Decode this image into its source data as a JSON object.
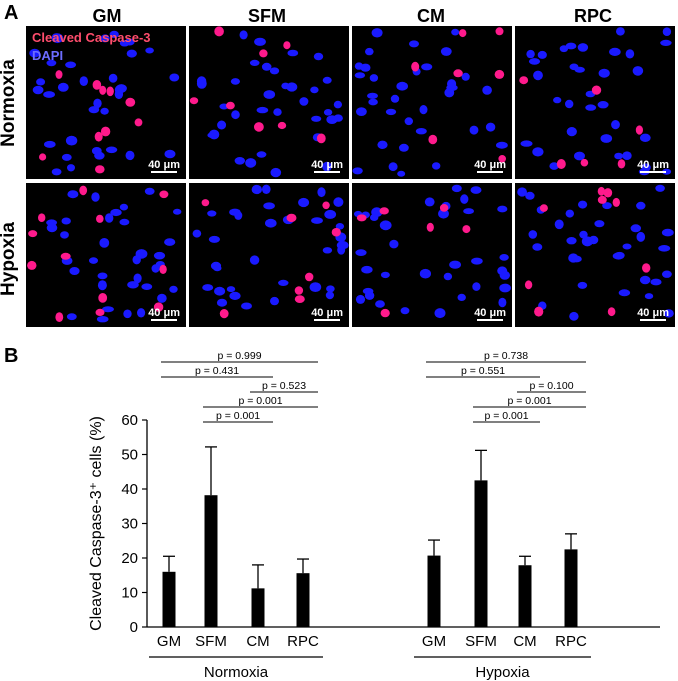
{
  "panel_a_label": "A",
  "panel_b_label": "B",
  "columns": [
    "GM",
    "SFM",
    "CM",
    "RPC"
  ],
  "rows": [
    "Normoxia",
    "Hypoxia"
  ],
  "legend": {
    "stain1": "Cleaved Caspase-3",
    "stain2": "DAPI"
  },
  "scale_bar_label": "40 μm",
  "colors": {
    "nucleus": "#1a1aff",
    "caspase": "#ff1a8c",
    "legend_red": "#ff4d6d",
    "legend_blue": "#6d6dff",
    "bar": "#000000"
  },
  "chart_data": {
    "type": "bar",
    "ylabel": "Cleaved Caspase-3⁺ cells (%)",
    "ylim": [
      0,
      60
    ],
    "yticks": [
      0,
      10,
      20,
      30,
      40,
      50,
      60
    ],
    "groups": [
      {
        "name": "Normoxia",
        "categories": [
          "GM",
          "SFM",
          "CM",
          "RPC"
        ],
        "values": [
          16,
          38.2,
          11.2,
          15.6
        ],
        "errors": [
          4.5,
          14,
          6.8,
          4.1
        ],
        "comparisons": [
          {
            "from": "GM",
            "to": "RPC",
            "p": "p = 0.999"
          },
          {
            "from": "GM",
            "to": "CM",
            "p": "p = 0.431"
          },
          {
            "from": "CM",
            "to": "RPC",
            "p": "p = 0.523"
          },
          {
            "from": "SFM",
            "to": "RPC",
            "p": "p = 0.001"
          },
          {
            "from": "SFM",
            "to": "CM",
            "p": "p = 0.001"
          }
        ]
      },
      {
        "name": "Hypoxia",
        "categories": [
          "GM",
          "SFM",
          "CM",
          "RPC"
        ],
        "values": [
          20.7,
          42.5,
          17.9,
          22.5
        ],
        "errors": [
          4.5,
          8.7,
          2.6,
          4.5
        ],
        "comparisons": [
          {
            "from": "GM",
            "to": "RPC",
            "p": "p = 0.738"
          },
          {
            "from": "GM",
            "to": "CM",
            "p": "p = 0.551"
          },
          {
            "from": "CM",
            "to": "RPC",
            "p": "p = 0.100"
          },
          {
            "from": "SFM",
            "to": "RPC",
            "p": "p = 0.001"
          },
          {
            "from": "SFM",
            "to": "CM",
            "p": "p = 0.001"
          }
        ]
      }
    ]
  }
}
